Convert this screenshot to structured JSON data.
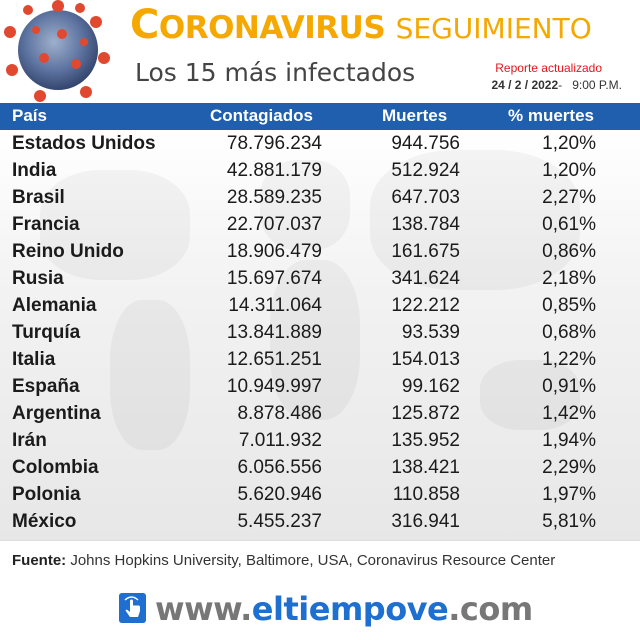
{
  "header": {
    "title_first_letter": "C",
    "title_rest": "ORONAVIRUS",
    "title_suffix": "SEGUIMIENTO",
    "subtitle": "Los 15 más infectados",
    "report_label": "Reporte actualizado",
    "report_date": "24 / 2 / 2022",
    "report_separator": "-",
    "report_time": "9:00 P.M."
  },
  "chart_data": {
    "type": "table",
    "columns": [
      "País",
      "Contagiados",
      "Muertes",
      "% muertes"
    ],
    "rows": [
      [
        "Estados Unidos",
        "78.796.234",
        "944.756",
        "1,20%"
      ],
      [
        "India",
        "42.881.179",
        "512.924",
        "1,20%"
      ],
      [
        "Brasil",
        "28.589.235",
        "647.703",
        "2,27%"
      ],
      [
        "Francia",
        "22.707.037",
        "138.784",
        "0,61%"
      ],
      [
        "Reino Unido",
        "18.906.479",
        "161.675",
        "0,86%"
      ],
      [
        "Rusia",
        "15.697.674",
        "341.624",
        "2,18%"
      ],
      [
        "Alemania",
        "14.311.064",
        "122.212",
        "0,85%"
      ],
      [
        "Turquía",
        "13.841.889",
        "93.539",
        "0,68%"
      ],
      [
        "Italia",
        "12.651.251",
        "154.013",
        "1,22%"
      ],
      [
        "España",
        "10.949.997",
        "99.162",
        "0,91%"
      ],
      [
        "Argentina",
        "8.878.486",
        "125.872",
        "1,42%"
      ],
      [
        "Irán",
        "7.011.932",
        "135.952",
        "1,94%"
      ],
      [
        "Colombia",
        "6.056.556",
        "138.421",
        "2,29%"
      ],
      [
        "Polonia",
        "5.620.946",
        "110.858",
        "1,97%"
      ],
      [
        "México",
        "5.455.237",
        "316.941",
        "5,81%"
      ]
    ]
  },
  "source": {
    "label": "Fuente:",
    "text": " Johns Hopkins University, Baltimore, USA, Coronavirus Resource Center"
  },
  "footer": {
    "site_prefix": "www.",
    "site_brand": "eltiempove",
    "site_suffix": ".com"
  },
  "colors": {
    "accent_orange": "#f5a800",
    "header_blue": "#1f5fae",
    "report_red": "#e8141a",
    "brand_blue": "#1f6fd1"
  },
  "icons": [
    "coronavirus-icon",
    "click-hand-icon",
    "world-map-watermark"
  ]
}
